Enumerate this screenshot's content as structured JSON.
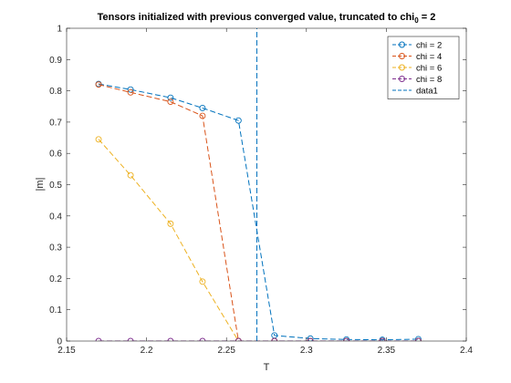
{
  "chart_data": {
    "type": "line",
    "title": {
      "prefix": "Tensors initialized with previous converged value, truncated to chi",
      "subscript": "0",
      "suffix": " = 2"
    },
    "xlabel": "T",
    "ylabel": "|m|",
    "xlim": [
      2.15,
      2.4
    ],
    "ylim": [
      0,
      1
    ],
    "xticks": [
      "2.15",
      "2.2",
      "2.25",
      "2.3",
      "2.35",
      "2.4"
    ],
    "yticks": [
      "0",
      "0.1",
      "0.2",
      "0.3",
      "0.4",
      "0.5",
      "0.6",
      "0.7",
      "0.8",
      "0.9",
      "1"
    ],
    "xtick_values": [
      2.15,
      2.2,
      2.25,
      2.3,
      2.35,
      2.4
    ],
    "ytick_values": [
      0,
      0.1,
      0.2,
      0.3,
      0.4,
      0.5,
      0.6,
      0.7,
      0.8,
      0.9,
      1
    ],
    "grid": false,
    "legend_position": "top-right",
    "series": [
      {
        "name": "chi = 2",
        "color": "#0072BD",
        "marker": "circle",
        "line": "dashed",
        "x": [
          2.17,
          2.19,
          2.215,
          2.235,
          2.2575,
          2.28,
          2.3025,
          2.325,
          2.3475,
          2.37
        ],
        "y": [
          0.822,
          0.804,
          0.778,
          0.745,
          0.705,
          0.018,
          0.008,
          0.005,
          0.004,
          0.006
        ]
      },
      {
        "name": "chi = 4",
        "color": "#D95319",
        "marker": "circle",
        "line": "dashed",
        "x": [
          2.17,
          2.19,
          2.215,
          2.235,
          2.2575,
          2.28,
          2.3025,
          2.325,
          2.3475,
          2.37
        ],
        "y": [
          0.82,
          0.795,
          0.765,
          0.72,
          0.0,
          0.0,
          0.0,
          0.0,
          0.0,
          0.0
        ]
      },
      {
        "name": "chi = 6",
        "color": "#EDB120",
        "marker": "circle",
        "line": "dashed",
        "x": [
          2.17,
          2.19,
          2.215,
          2.235,
          2.2575,
          2.28,
          2.3025,
          2.325,
          2.3475,
          2.37
        ],
        "y": [
          0.645,
          0.53,
          0.375,
          0.19,
          0.0,
          0.0,
          0.0,
          0.0,
          0.0,
          0.0
        ]
      },
      {
        "name": "chi = 8",
        "color": "#7E2F8E",
        "marker": "circle",
        "line": "dashed",
        "x": [
          2.17,
          2.19,
          2.215,
          2.235,
          2.2575,
          2.28,
          2.3025,
          2.325,
          2.3475,
          2.37
        ],
        "y": [
          0.0,
          0.0,
          0.0,
          0.0,
          0.0,
          0.0,
          0.0,
          0.0,
          0.0,
          0.0
        ]
      },
      {
        "name": "data1",
        "color": "#0072BD",
        "marker": "none",
        "line": "dashed",
        "x": [
          2.269,
          2.269
        ],
        "y": [
          0,
          1
        ]
      }
    ]
  }
}
